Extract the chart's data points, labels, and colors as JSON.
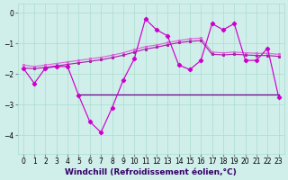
{
  "x": [
    0,
    1,
    2,
    3,
    4,
    5,
    6,
    7,
    8,
    9,
    10,
    11,
    12,
    13,
    14,
    15,
    16,
    17,
    18,
    19,
    20,
    21,
    22,
    23
  ],
  "line_main": [
    -1.8,
    -2.3,
    -1.8,
    -1.75,
    -1.75,
    -2.7,
    -3.55,
    -3.9,
    -3.1,
    -2.2,
    -1.5,
    -0.2,
    -0.55,
    -0.75,
    -1.7,
    -1.85,
    -1.55,
    -0.35,
    -0.55,
    -0.35,
    -1.55,
    -1.55,
    -1.15,
    -2.75
  ],
  "line_flat_x": [
    5,
    6,
    7,
    8,
    9,
    10,
    11,
    12,
    13,
    14,
    15,
    16,
    17,
    18,
    19,
    20,
    21,
    22,
    23
  ],
  "line_flat_y": [
    -2.65,
    -2.65,
    -2.65,
    -2.65,
    -2.65,
    -2.65,
    -2.65,
    -2.65,
    -2.65,
    -2.65,
    -2.65,
    -2.65,
    -2.65,
    -2.65,
    -2.65,
    -2.65,
    -2.65,
    -2.65,
    -2.65
  ],
  "trend_upper": [
    -1.7,
    -1.75,
    -1.7,
    -1.65,
    -1.6,
    -1.55,
    -1.5,
    -1.45,
    -1.38,
    -1.3,
    -1.2,
    -1.1,
    -1.05,
    -0.97,
    -0.9,
    -0.85,
    -0.82,
    -1.28,
    -1.3,
    -1.28,
    -1.3,
    -1.32,
    -1.32,
    -1.35
  ],
  "trend_lower": [
    -1.8,
    -1.82,
    -1.78,
    -1.73,
    -1.68,
    -1.63,
    -1.58,
    -1.53,
    -1.46,
    -1.38,
    -1.28,
    -1.18,
    -1.12,
    -1.04,
    -0.97,
    -0.93,
    -0.9,
    -1.35,
    -1.37,
    -1.35,
    -1.37,
    -1.39,
    -1.39,
    -1.42
  ],
  "bg_color": "#d0eeea",
  "grid_color": "#aaddcc",
  "line_main_color": "#cc00cc",
  "line_flat_color": "#660088",
  "trend_upper_color": "#dd66dd",
  "trend_lower_color": "#aa22aa",
  "xlabel": "Windchill (Refroidissement éolien,°C)",
  "xlabel_fontsize": 6.5,
  "tick_fontsize": 5.5,
  "ylim": [
    -4.6,
    0.3
  ],
  "yticks": [
    0,
    -1,
    -2,
    -3,
    -4
  ],
  "xticks": [
    0,
    1,
    2,
    3,
    4,
    5,
    6,
    7,
    8,
    9,
    10,
    11,
    12,
    13,
    14,
    15,
    16,
    17,
    18,
    19,
    20,
    21,
    22,
    23
  ]
}
